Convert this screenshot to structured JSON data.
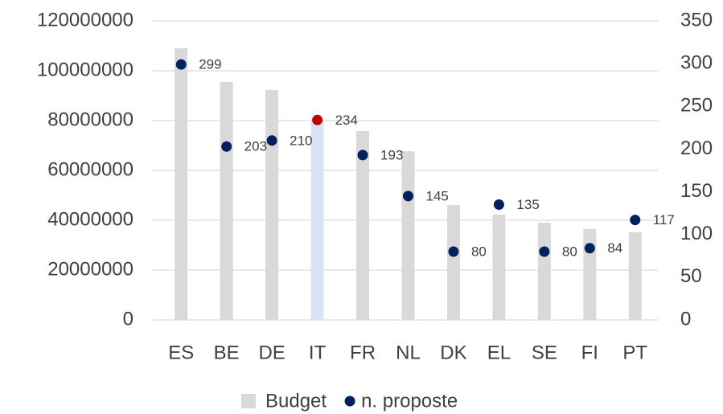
{
  "chart_data": {
    "type": "bar_scatter",
    "categories": [
      "ES",
      "BE",
      "DE",
      "IT",
      "FR",
      "NL",
      "DK",
      "EL",
      "SE",
      "FI",
      "PT"
    ],
    "series": [
      {
        "name": "Budget",
        "type": "bar",
        "color": "#d9d9d9",
        "colors": [
          "#d9d9d9",
          "#d9d9d9",
          "#d9d9d9",
          "#dae3f3",
          "#d9d9d9",
          "#d9d9d9",
          "#d9d9d9",
          "#d9d9d9",
          "#d9d9d9",
          "#d9d9d9",
          "#d9d9d9"
        ],
        "values": [
          109000000,
          95500000,
          92300000,
          80000000,
          75800000,
          67700000,
          46100000,
          42300000,
          39000000,
          36500000,
          35200000
        ]
      },
      {
        "name": "n. proposte",
        "type": "scatter",
        "axis": "y2",
        "color": "#002060",
        "colors": [
          "#002060",
          "#002060",
          "#002060",
          "#c00000",
          "#002060",
          "#002060",
          "#002060",
          "#002060",
          "#002060",
          "#002060",
          "#002060"
        ],
        "values": [
          299,
          203,
          210,
          234,
          193,
          145,
          80,
          135,
          80,
          84,
          117
        ]
      }
    ],
    "ylim": [
      0,
      120000000
    ],
    "yticks": [
      0,
      20000000,
      40000000,
      60000000,
      80000000,
      100000000,
      120000000
    ],
    "y2lim": [
      0,
      350
    ],
    "y2ticks": [
      0,
      50,
      100,
      150,
      200,
      250,
      300,
      350
    ],
    "grid": true,
    "legend": "bottom"
  }
}
